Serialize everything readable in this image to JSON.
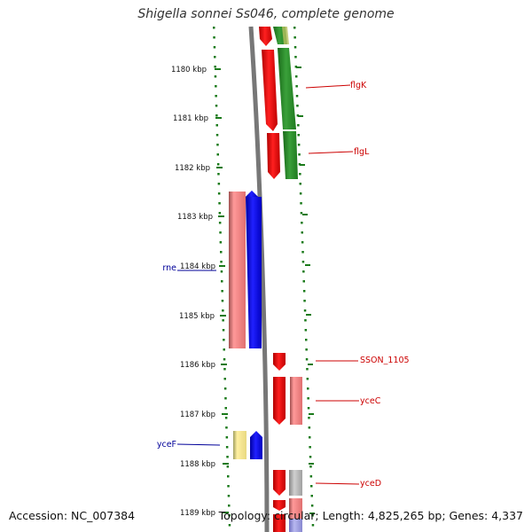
{
  "title": "Shigella sonnei Ss046, complete genome",
  "accession": "Accession: NC_007384",
  "summary": "Topology: circular; Length: 4,825,265 bp; Genes: 4,337",
  "ticks": [
    "1180 kbp",
    "1181 kbp",
    "1182 kbp",
    "1183 kbp",
    "1184 kbp",
    "1185 kbp",
    "1186 kbp",
    "1187 kbp",
    "1188 kbp",
    "1189 kbp"
  ],
  "genes": [
    {
      "label": "flgK",
      "strand": "forward",
      "side": "right"
    },
    {
      "label": "flgL",
      "strand": "forward",
      "side": "right"
    },
    {
      "label": "rne",
      "strand": "reverse",
      "side": "left"
    },
    {
      "label": "SSON_1105",
      "strand": "forward",
      "side": "right"
    },
    {
      "label": "yceC",
      "strand": "forward",
      "side": "right"
    },
    {
      "label": "yceF",
      "strand": "reverse",
      "side": "left"
    },
    {
      "label": "yceD",
      "strand": "forward",
      "side": "right"
    }
  ],
  "colors": {
    "forward_gene": "#ff0000",
    "forward_label": "#cc0000",
    "reverse_gene": "#0000ff",
    "reverse_label": "#000099",
    "rna_gene": "#f08080",
    "pseudo_gene": "#f5e68c",
    "green_track": "#228b22",
    "backbone": "#777777",
    "ruler": "#1a7a1a",
    "grey_gene": "#aaaaaa"
  }
}
